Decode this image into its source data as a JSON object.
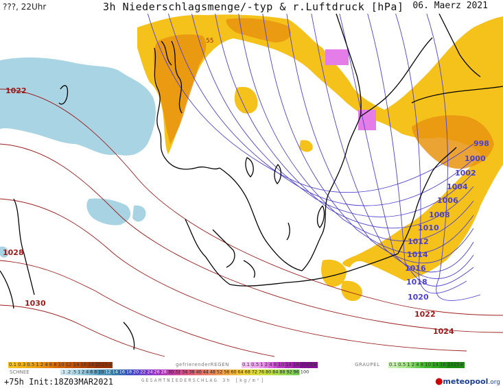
{
  "header": {
    "left": "???, 22Uhr",
    "title": "3h Niederschlagsmenge/-typ & r.Luftdruck [hPa]",
    "date": "06. Maerz 2021"
  },
  "isobars_purple": [
    "998",
    "1000",
    "1002",
    "1004",
    "1006",
    "1008",
    "1010",
    "1012",
    "1014",
    "1016",
    "1018",
    "1020"
  ],
  "isobars_red": [
    "1022",
    "1024",
    "1028",
    "1030",
    "1022"
  ],
  "small_label": "55",
  "legend": {
    "rain_values": [
      "0.1",
      "0.3",
      "0.5",
      "1",
      "2",
      "4",
      "6",
      "8",
      "10",
      "12",
      "14",
      "16",
      "18",
      "2025+"
    ],
    "freezing_label": "gefrierenderREGEN",
    "freezing_values": [
      "0.1",
      "0.5",
      "1",
      "2",
      "4",
      "8",
      "10",
      "14",
      "16",
      "2025+"
    ],
    "graupel_label": "GRAUPEL",
    "graupel_values": [
      "0.1",
      "0.5",
      "1",
      "2",
      "4",
      "8",
      "10",
      "14",
      "16",
      "2025+"
    ],
    "snow_label": "SCHNEE",
    "snow_values": [
      ".1",
      ".2",
      ".5",
      "1",
      "2",
      "4",
      "6",
      "8",
      "10",
      "12",
      "14",
      "16",
      "18",
      "20",
      "22",
      "24",
      "26",
      "28",
      "30",
      "32",
      "34",
      "36",
      "40",
      "44",
      "48",
      "52",
      "56",
      "60",
      "64",
      "68",
      "72",
      "76",
      "80",
      "84",
      "88",
      "92",
      "96",
      "100"
    ],
    "total_label": "GESAMTNIEDERSCHLAG 3h [kg/m²]"
  },
  "footer": {
    "init": "+75h Init:18Z03MAR2021",
    "brand": "meteopool",
    "brand_suffix": ".org"
  },
  "colors": {
    "rain_yellow": "#f5c21b",
    "rain_orange": "#e89410",
    "snow_blue": "#9fcfe0",
    "freezing_pink": "#e57de8",
    "isobar_purple": "#4b3fd1",
    "isobar_red": "#9b1b1b",
    "coast": "#000000"
  }
}
